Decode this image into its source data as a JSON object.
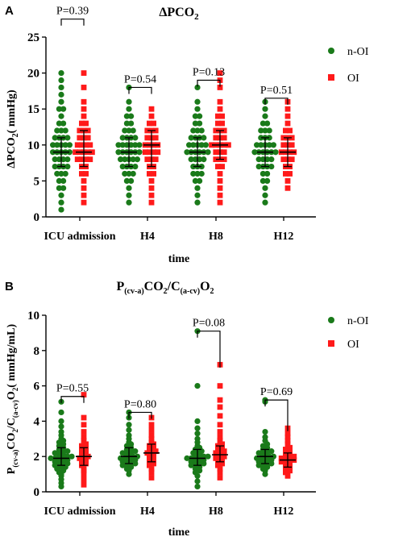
{
  "figure": {
    "panelA": {
      "letter": "A"
    },
    "panelB": {
      "letter": "B"
    }
  },
  "chart_data": [
    {
      "type": "scatter",
      "title": "ΔPCO₂",
      "ylabel": "ΔPCO₂( mmHg)",
      "xlabel": "time",
      "categories": [
        "ICU admission",
        "H4",
        "H8",
        "H12"
      ],
      "yticks": [
        "0",
        "5",
        "10",
        "15",
        "20",
        "25"
      ],
      "ylim": [
        0,
        25
      ],
      "legend": {
        "placement": "right",
        "entries": [
          "n-OI",
          "OI"
        ]
      },
      "colors": {
        "n-OI": "#1a7a1a",
        "OI": "#ff1a1a"
      },
      "p_values": [
        "P=0.39",
        "P=0.54",
        "P=0.13",
        "P=0.51"
      ],
      "bracket_y": [
        27.5,
        18,
        19,
        16.5
      ],
      "summary": {
        "n-OI": {
          "median": [
            9,
            9,
            9,
            9
          ],
          "q1": [
            7,
            7,
            7,
            7
          ],
          "q3": [
            11,
            11,
            11,
            11
          ]
        },
        "OI": {
          "median": [
            9,
            10,
            10,
            9
          ],
          "q1": [
            7,
            7,
            8,
            7
          ],
          "q3": [
            12,
            12,
            12,
            11
          ]
        }
      },
      "series": [
        {
          "name": "n-OI",
          "groups": [
            [
              1,
              2,
              3,
              4,
              4,
              5,
              5,
              6,
              6,
              6,
              7,
              7,
              7,
              7,
              8,
              8,
              8,
              8,
              9,
              9,
              9,
              9,
              9,
              10,
              10,
              10,
              10,
              10,
              11,
              11,
              11,
              11,
              12,
              12,
              12,
              13,
              13,
              14,
              15,
              15,
              16,
              17,
              18,
              19,
              20
            ],
            [
              2,
              3,
              4,
              5,
              5,
              6,
              6,
              6,
              7,
              7,
              7,
              7,
              8,
              8,
              8,
              8,
              8,
              9,
              9,
              9,
              9,
              9,
              9,
              10,
              10,
              10,
              10,
              10,
              10,
              11,
              11,
              11,
              11,
              12,
              12,
              12,
              13,
              13,
              14,
              14,
              15,
              16,
              18
            ],
            [
              2,
              3,
              4,
              5,
              5,
              6,
              6,
              6,
              7,
              7,
              7,
              8,
              8,
              8,
              8,
              9,
              9,
              9,
              9,
              9,
              9,
              10,
              10,
              10,
              10,
              10,
              11,
              11,
              11,
              11,
              12,
              12,
              12,
              13,
              13,
              14,
              14,
              15,
              16,
              18
            ],
            [
              2,
              3,
              4,
              5,
              5,
              6,
              6,
              7,
              7,
              7,
              7,
              8,
              8,
              8,
              8,
              9,
              9,
              9,
              9,
              9,
              9,
              10,
              10,
              10,
              10,
              10,
              11,
              11,
              11,
              12,
              12,
              12,
              13,
              13,
              14,
              15,
              16
            ]
          ]
        },
        {
          "name": "OI",
          "groups": [
            [
              2,
              3,
              4,
              5,
              6,
              6,
              7,
              7,
              8,
              8,
              8,
              8,
              9,
              9,
              9,
              9,
              9,
              10,
              10,
              10,
              10,
              11,
              11,
              11,
              12,
              12,
              12,
              13,
              13,
              14,
              15,
              16,
              18,
              20
            ],
            [
              2,
              3,
              4,
              5,
              6,
              6,
              7,
              7,
              8,
              8,
              8,
              9,
              9,
              9,
              9,
              10,
              10,
              10,
              10,
              11,
              11,
              11,
              12,
              12,
              12,
              13,
              13,
              14,
              15
            ],
            [
              2,
              3,
              4,
              5,
              6,
              7,
              7,
              8,
              8,
              8,
              9,
              9,
              9,
              10,
              10,
              10,
              10,
              10,
              11,
              11,
              11,
              12,
              12,
              12,
              13,
              13,
              14,
              14,
              15,
              16,
              18,
              19,
              20
            ],
            [
              4,
              5,
              6,
              6,
              7,
              7,
              8,
              8,
              8,
              9,
              9,
              9,
              9,
              10,
              10,
              10,
              11,
              11,
              11,
              12,
              12,
              13,
              14,
              15,
              16
            ]
          ]
        }
      ]
    },
    {
      "type": "scatter",
      "title": "P(cv-a)CO₂/C(a-cv)O₂",
      "ylabel": "P(cv-a)CO₂/C(a-cv)O₂( mmHg/mL)",
      "xlabel": "time",
      "categories": [
        "ICU admission",
        "H4",
        "H8",
        "H12"
      ],
      "yticks": [
        "0",
        "2",
        "4",
        "6",
        "8",
        "10"
      ],
      "ylim": [
        0,
        10
      ],
      "legend": {
        "placement": "right",
        "entries": [
          "n-OI",
          "OI"
        ]
      },
      "colors": {
        "n-OI": "#1a7a1a",
        "OI": "#ff1a1a"
      },
      "p_values": [
        "P=0.55",
        "P=0.80",
        "P=0.08",
        "P=0.69"
      ],
      "bracket_y": [
        5.4,
        4.5,
        9.1,
        5.2
      ],
      "bracket_right_drop": [
        0,
        0,
        1.7,
        1.4
      ],
      "summary": {
        "n-OI": {
          "median": [
            1.9,
            2.0,
            1.9,
            2.0
          ],
          "q1": [
            1.5,
            1.6,
            1.5,
            1.6
          ],
          "q3": [
            2.5,
            2.5,
            2.4,
            2.4
          ]
        },
        "OI": {
          "median": [
            2.0,
            2.2,
            2.1,
            1.8
          ],
          "q1": [
            1.5,
            1.7,
            1.7,
            1.4
          ],
          "q3": [
            2.5,
            2.7,
            2.6,
            2.2
          ]
        }
      },
      "series": [
        {
          "name": "n-OI",
          "groups": [
            [
              0.3,
              0.5,
              0.7,
              0.9,
              1.0,
              1.1,
              1.2,
              1.3,
              1.4,
              1.4,
              1.5,
              1.5,
              1.6,
              1.6,
              1.7,
              1.7,
              1.8,
              1.8,
              1.9,
              1.9,
              1.9,
              2.0,
              2.0,
              2.0,
              2.1,
              2.1,
              2.2,
              2.2,
              2.3,
              2.3,
              2.4,
              2.5,
              2.6,
              2.7,
              2.8,
              2.9,
              3.0,
              3.2,
              3.4,
              3.7,
              4.0,
              4.5,
              5.1
            ],
            [
              1.0,
              1.2,
              1.3,
              1.4,
              1.5,
              1.5,
              1.6,
              1.6,
              1.7,
              1.7,
              1.8,
              1.8,
              1.9,
              1.9,
              2.0,
              2.0,
              2.0,
              2.1,
              2.1,
              2.2,
              2.2,
              2.3,
              2.3,
              2.4,
              2.5,
              2.6,
              2.7,
              2.8,
              3.0,
              3.2,
              3.5,
              3.8,
              4.2,
              4.5
            ],
            [
              0.3,
              0.6,
              0.9,
              1.1,
              1.2,
              1.3,
              1.4,
              1.5,
              1.5,
              1.6,
              1.6,
              1.7,
              1.7,
              1.8,
              1.8,
              1.9,
              1.9,
              1.9,
              2.0,
              2.0,
              2.0,
              2.1,
              2.1,
              2.2,
              2.2,
              2.3,
              2.4,
              2.5,
              2.6,
              2.8,
              3.0,
              3.3,
              3.6,
              4.0,
              6.0,
              9.1
            ],
            [
              1.0,
              1.2,
              1.3,
              1.4,
              1.5,
              1.5,
              1.6,
              1.6,
              1.7,
              1.7,
              1.8,
              1.8,
              1.9,
              1.9,
              2.0,
              2.0,
              2.0,
              2.1,
              2.1,
              2.2,
              2.2,
              2.3,
              2.3,
              2.4,
              2.5,
              2.6,
              2.7,
              2.9,
              3.1,
              3.4,
              5.1,
              5.2
            ]
          ]
        },
        {
          "name": "OI",
          "groups": [
            [
              0.4,
              0.7,
              1.0,
              1.2,
              1.3,
              1.5,
              1.6,
              1.7,
              1.8,
              1.9,
              2.0,
              2.0,
              2.1,
              2.2,
              2.3,
              2.4,
              2.5,
              2.6,
              2.7,
              2.9,
              3.1,
              3.4,
              3.8,
              4.2,
              5.5
            ],
            [
              0.8,
              1.1,
              1.3,
              1.5,
              1.6,
              1.7,
              1.8,
              1.9,
              2.0,
              2.1,
              2.2,
              2.2,
              2.3,
              2.4,
              2.5,
              2.6,
              2.7,
              2.8,
              3.0,
              3.2,
              3.5,
              3.8,
              4.2
            ],
            [
              0.8,
              1.1,
              1.3,
              1.5,
              1.6,
              1.7,
              1.8,
              1.9,
              2.0,
              2.0,
              2.1,
              2.2,
              2.2,
              2.3,
              2.4,
              2.5,
              2.6,
              2.7,
              2.9,
              3.1,
              3.4,
              3.8,
              4.3,
              4.8,
              5.2,
              6.0,
              7.2
            ],
            [
              0.9,
              1.1,
              1.2,
              1.3,
              1.4,
              1.5,
              1.6,
              1.7,
              1.7,
              1.8,
              1.8,
              1.9,
              1.9,
              2.0,
              2.0,
              2.1,
              2.2,
              2.3,
              2.4,
              2.5,
              2.7,
              2.9,
              3.1,
              3.3,
              3.6
            ]
          ]
        }
      ]
    }
  ]
}
